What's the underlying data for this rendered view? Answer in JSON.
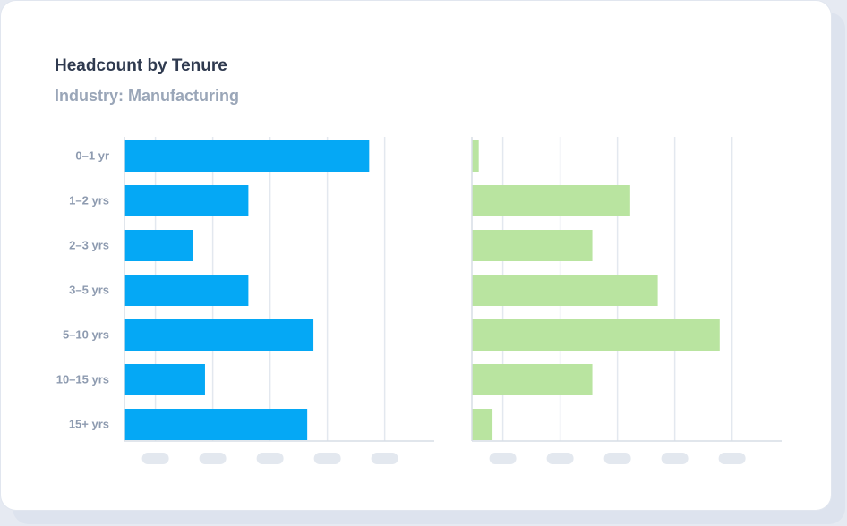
{
  "chart_data": {
    "type": "bar",
    "title": "Headcount by Tenure",
    "subtitle": "Industry: Manufacturing",
    "categories": [
      "0–1 yr",
      "1–2 yrs",
      "2–3 yrs",
      "3–5 yrs",
      "5–10 yrs",
      "10–15 yrs",
      "15+ yrs"
    ],
    "panels": [
      {
        "color": "#05a8f5",
        "values": [
          79,
          40,
          22,
          40,
          61,
          26,
          59
        ],
        "xlim": [
          0,
          100
        ],
        "grid": true
      },
      {
        "color": "#b9e4a0",
        "values": [
          2,
          46,
          35,
          54,
          72,
          35,
          6
        ],
        "xlim": [
          0,
          90
        ],
        "grid": true
      }
    ],
    "tick_labels_visible": false,
    "legend": "none"
  }
}
